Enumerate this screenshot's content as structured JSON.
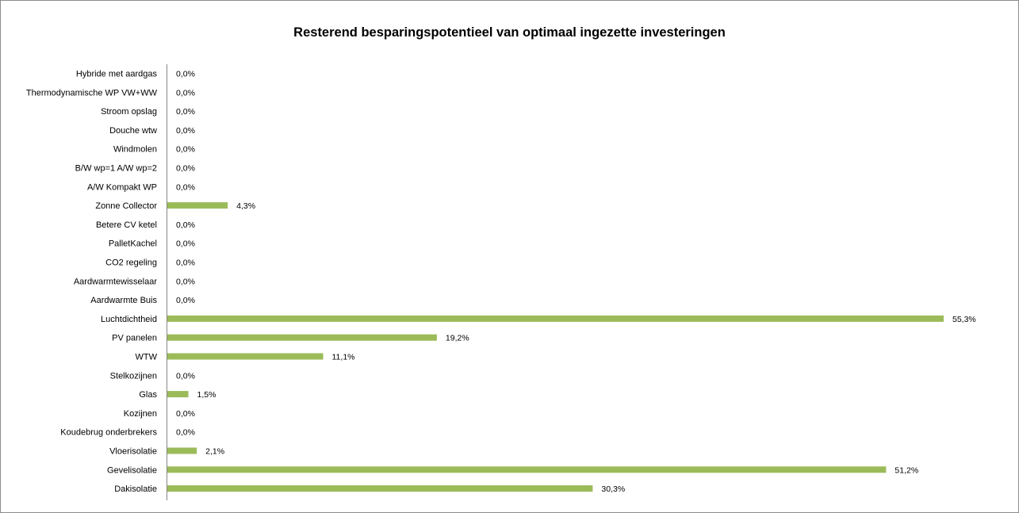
{
  "chart_data": {
    "type": "bar",
    "orientation": "horizontal",
    "title": "Resterend besparingspotentieel van optimaal ingezette investeringen",
    "categories": [
      "Hybride met aardgas",
      "Thermodynamische WP VW+WW",
      "Stroom opslag",
      "Douche wtw",
      "Windmolen",
      "B/W wp=1 A/W wp=2",
      "A/W Kompakt WP",
      "Zonne Collector",
      "Betere CV ketel",
      "PalletKachel",
      "CO2 regeling",
      "Aardwarmtewisselaar",
      "Aardwarmte Buis",
      "Luchtdichtheid",
      "PV panelen",
      "WTW",
      "Stelkozijnen",
      "Glas",
      "Kozijnen",
      "Koudebrug onderbrekers",
      "Vloerisolatie",
      "Gevelisolatie",
      "Dakisolatie"
    ],
    "values": [
      0.0,
      0.0,
      0.0,
      0.0,
      0.0,
      0.0,
      0.0,
      4.3,
      0.0,
      0.0,
      0.0,
      0.0,
      0.0,
      55.3,
      19.2,
      11.1,
      0.0,
      1.5,
      0.0,
      0.0,
      2.1,
      51.2,
      30.3
    ],
    "data_labels": [
      "0,0%",
      "0,0%",
      "0,0%",
      "0,0%",
      "0,0%",
      "0,0%",
      "0,0%",
      "4,3%",
      "0,0%",
      "0,0%",
      "0,0%",
      "0,0%",
      "0,0%",
      "55,3%",
      "19,2%",
      "11,1%",
      "0,0%",
      "1,5%",
      "0,0%",
      "0,0%",
      "2,1%",
      "51,2%",
      "30,3%"
    ],
    "unit": "%",
    "bar_color": "#9bbb59",
    "grid": false,
    "legend": "none"
  }
}
